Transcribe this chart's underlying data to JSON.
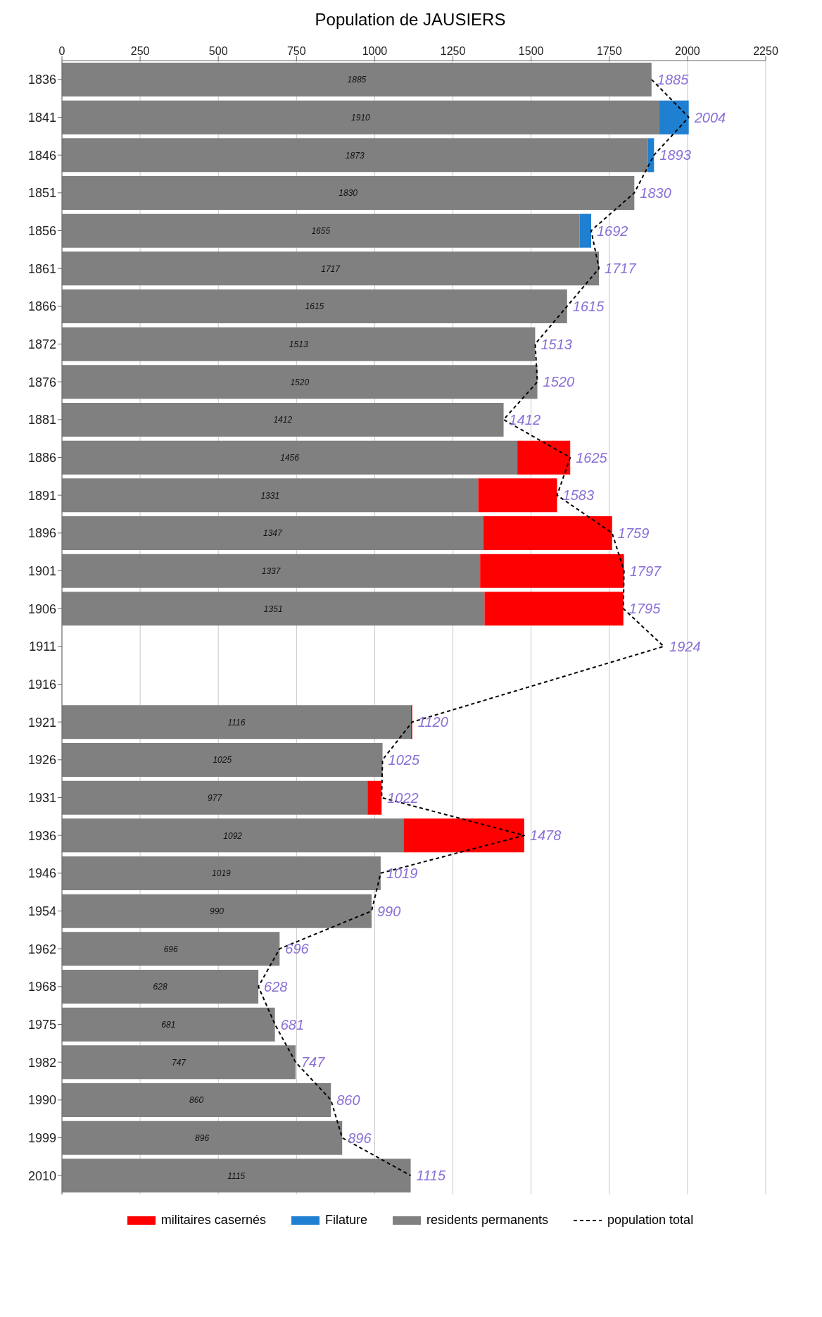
{
  "chart_data": {
    "type": "bar",
    "orientation": "horizontal",
    "stacked": true,
    "title": "Population de JAUSIERS",
    "categories": [
      "1836",
      "1841",
      "1846",
      "1851",
      "1856",
      "1861",
      "1866",
      "1872",
      "1876",
      "1881",
      "1886",
      "1891",
      "1896",
      "1901",
      "1906",
      "1911",
      "1916",
      "1921",
      "1926",
      "1931",
      "1936",
      "1946",
      "1954",
      "1962",
      "1968",
      "1975",
      "1982",
      "1990",
      "1999",
      "2010"
    ],
    "series": [
      {
        "name": "residents permanents",
        "color": "#808080",
        "values": [
          1885,
          1910,
          1873,
          1830,
          1655,
          1717,
          1615,
          1513,
          1520,
          1412,
          1456,
          1331,
          1347,
          1337,
          1351,
          null,
          null,
          1116,
          1025,
          977,
          1092,
          1019,
          990,
          696,
          628,
          681,
          747,
          860,
          896,
          1115
        ],
        "value_labels": [
          "1885",
          "1910",
          "1873",
          "1830",
          "1655",
          "1717",
          "1615",
          "1513",
          "1520",
          "1412",
          "1456",
          "1331",
          "1347",
          "1337",
          "1351",
          null,
          null,
          "1116",
          "1025",
          "977",
          "1092",
          "1019",
          "990",
          "696",
          "628",
          "681",
          "747",
          "860",
          "896",
          "1115"
        ]
      },
      {
        "name": "Filature",
        "color": "#1f7fd0",
        "values": [
          null,
          94,
          20,
          null,
          37,
          null,
          null,
          null,
          null,
          null,
          null,
          null,
          null,
          null,
          null,
          null,
          null,
          null,
          null,
          null,
          null,
          null,
          null,
          null,
          null,
          null,
          null,
          null,
          null,
          null
        ]
      },
      {
        "name": "militaires casernés",
        "color": "#ff0000",
        "values": [
          null,
          null,
          null,
          null,
          null,
          null,
          null,
          null,
          null,
          null,
          169,
          252,
          412,
          460,
          444,
          null,
          null,
          4,
          null,
          45,
          386,
          null,
          null,
          null,
          null,
          null,
          null,
          null,
          null,
          null
        ]
      },
      {
        "name": "population total",
        "type": "line",
        "color": "#000000",
        "line_style": "dashed",
        "marker": "none",
        "values": [
          1885,
          2004,
          1893,
          1830,
          1692,
          1717,
          1615,
          1513,
          1520,
          1412,
          1625,
          1583,
          1759,
          1797,
          1795,
          1924,
          null,
          1120,
          1025,
          1022,
          1478,
          1019,
          990,
          696,
          628,
          681,
          747,
          860,
          896,
          1115
        ],
        "value_labels": [
          "1885",
          "2004",
          "1893",
          "1830",
          "1692",
          "1717",
          "1615",
          "1513",
          "1520",
          "1412",
          "1625",
          "1583",
          "1759",
          "1797",
          "1795",
          "1924",
          null,
          "1120",
          "1025",
          "1022",
          "1478",
          "1019",
          "990",
          "696",
          "628",
          "681",
          "747",
          "860",
          "896",
          "1115"
        ]
      }
    ],
    "xlim": [
      0,
      2250
    ],
    "xticks": [
      0,
      250,
      500,
      750,
      1000,
      1250,
      1500,
      1750,
      2000,
      2250
    ],
    "grid": "x",
    "legend": "bottom"
  }
}
